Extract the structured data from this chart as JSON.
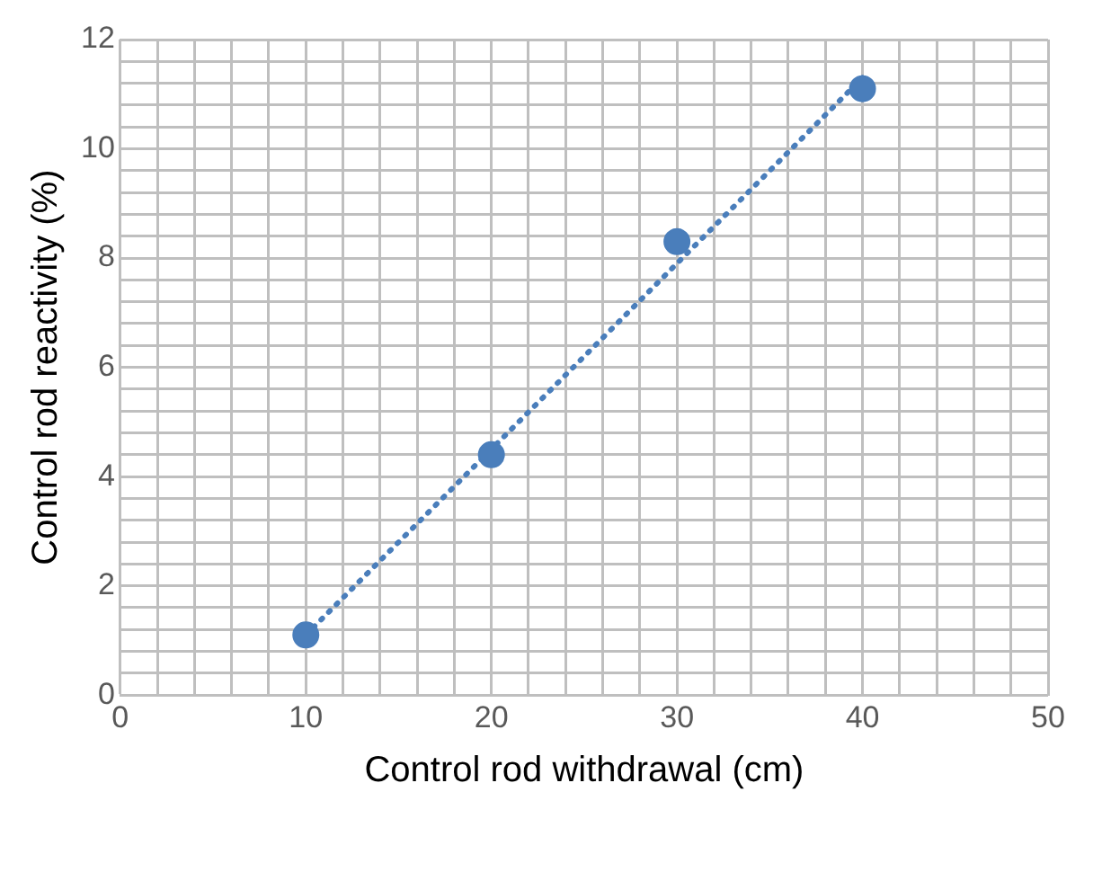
{
  "chart_data": {
    "type": "scatter",
    "xlabel": "Control rod withdrawal (cm)",
    "ylabel": "Control rod reactivity (%)",
    "x": [
      10,
      20,
      30,
      40
    ],
    "series": [
      {
        "type": "scatter",
        "color": "#4a7ebb",
        "values": [
          1.1,
          4.4,
          8.3,
          11.1
        ],
        "marker": "circle"
      },
      {
        "type": "line",
        "color": "#4a7ebb",
        "x": [
          10,
          40
        ],
        "values": [
          1.1,
          11.3
        ],
        "line_style": "dotted",
        "marker": "none"
      }
    ],
    "xlim": [
      0,
      50
    ],
    "ylim": [
      0,
      12
    ],
    "xticks": [
      0,
      {
        "value": 2,
        "label": null
      },
      {
        "value": 4,
        "label": null
      },
      {
        "value": 6,
        "label": null
      },
      {
        "value": 8,
        "label": null
      },
      10,
      {
        "value": 12,
        "label": null
      },
      {
        "value": 14,
        "label": null
      },
      {
        "value": 16,
        "label": null
      },
      {
        "value": 18,
        "label": null
      },
      20,
      {
        "value": 22,
        "label": null
      },
      {
        "value": 24,
        "label": null
      },
      {
        "value": 26,
        "label": null
      },
      {
        "value": 28,
        "label": null
      },
      30,
      {
        "value": 32,
        "label": null
      },
      {
        "value": 34,
        "label": null
      },
      {
        "value": 36,
        "label": null
      },
      {
        "value": 38,
        "label": null
      },
      40,
      {
        "value": 42,
        "label": null
      },
      {
        "value": 44,
        "label": null
      },
      {
        "value": 46,
        "label": null
      },
      {
        "value": 48,
        "label": null
      },
      50
    ],
    "yticks": [
      0,
      {
        "value": 0.4,
        "label": null
      },
      {
        "value": 0.8,
        "label": null
      },
      {
        "value": 1.2,
        "label": null
      },
      {
        "value": 1.6,
        "label": null
      },
      2,
      {
        "value": 2.4,
        "label": null
      },
      {
        "value": 2.8,
        "label": null
      },
      {
        "value": 3.2,
        "label": null
      },
      {
        "value": 3.6,
        "label": null
      },
      4,
      {
        "value": 4.4,
        "label": null
      },
      {
        "value": 4.8,
        "label": null
      },
      {
        "value": 5.2,
        "label": null
      },
      {
        "value": 5.6,
        "label": null
      },
      6,
      {
        "value": 6.4,
        "label": null
      },
      {
        "value": 6.8,
        "label": null
      },
      {
        "value": 7.2,
        "label": null
      },
      {
        "value": 7.6,
        "label": null
      },
      8,
      {
        "value": 8.4,
        "label": null
      },
      {
        "value": 8.8,
        "label": null
      },
      {
        "value": 9.2,
        "label": null
      },
      {
        "value": 9.6,
        "label": null
      },
      10,
      {
        "value": 10.4,
        "label": null
      },
      {
        "value": 10.8,
        "label": null
      },
      {
        "value": 11.2,
        "label": null
      },
      {
        "value": 11.6,
        "label": null
      },
      12
    ],
    "grid": true
  }
}
